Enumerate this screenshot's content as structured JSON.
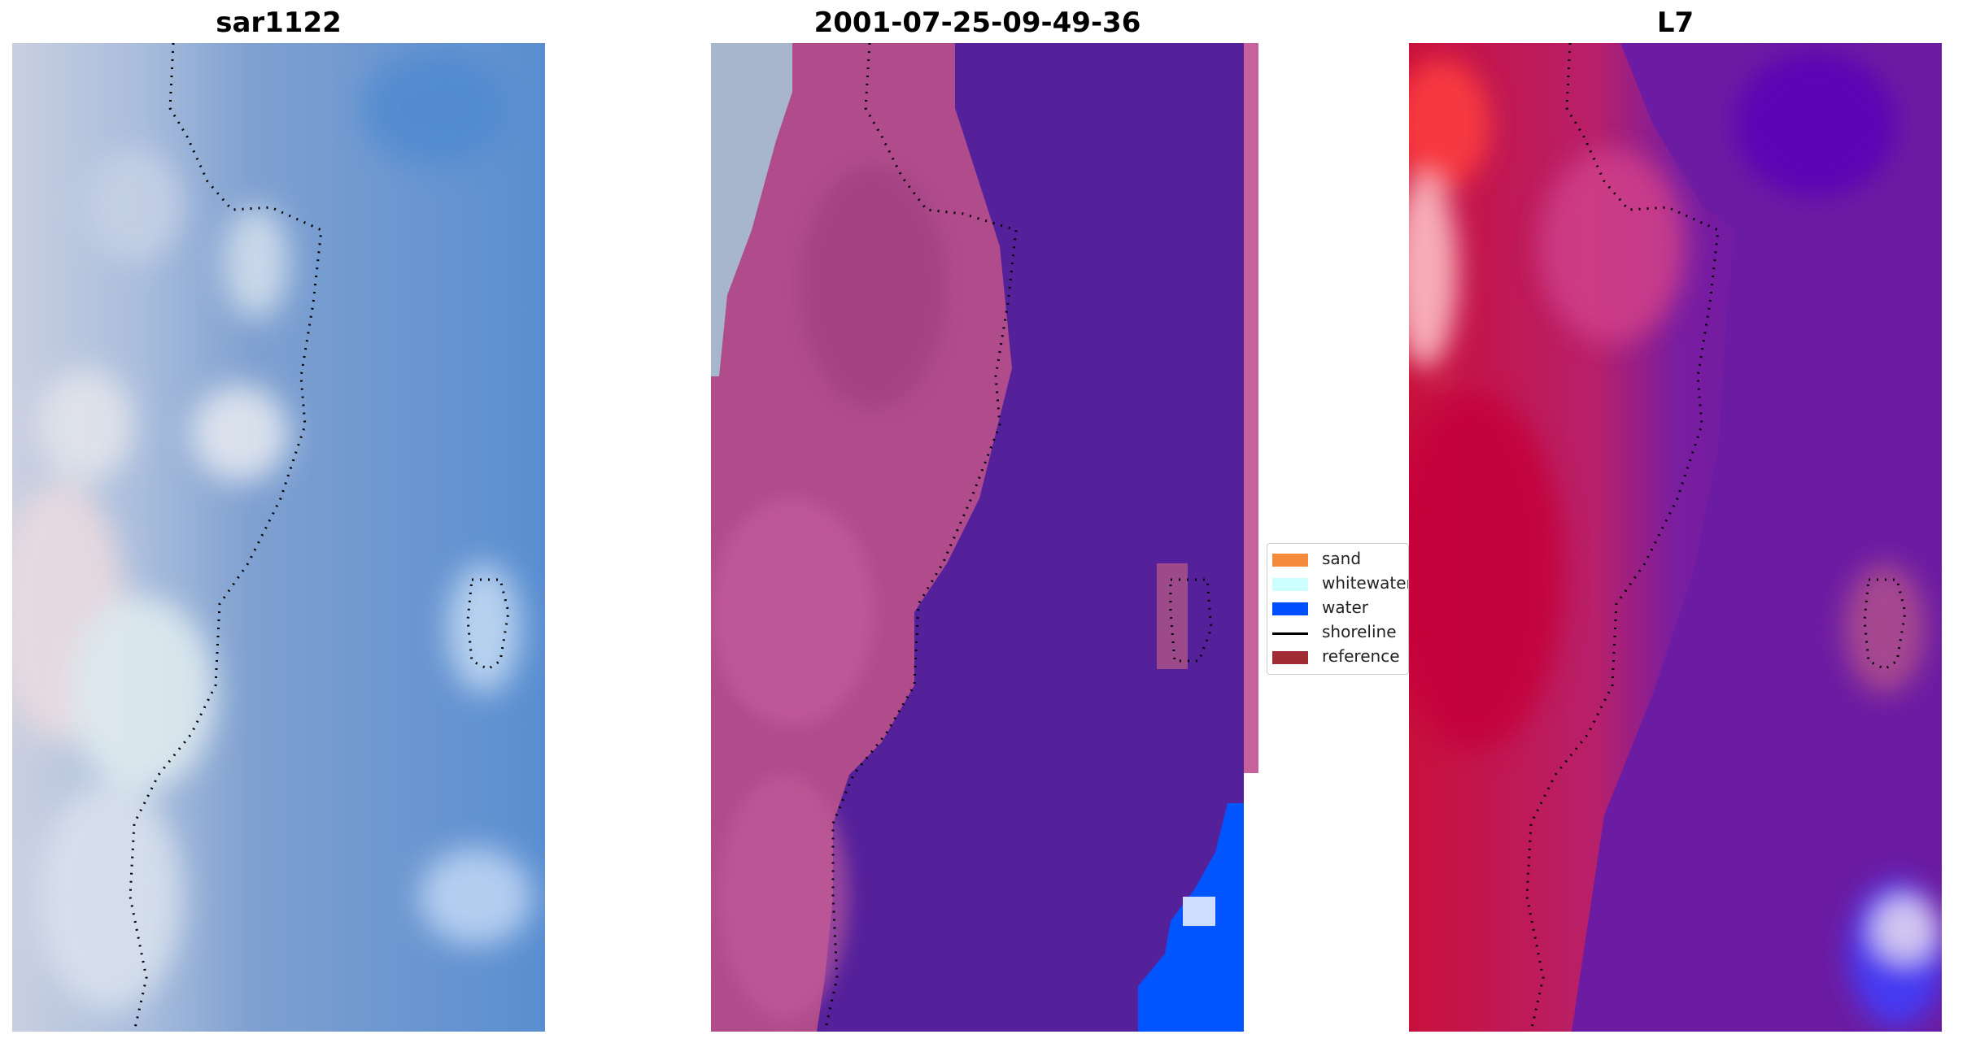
{
  "panels": [
    {
      "title": "sar1122"
    },
    {
      "title": "2001-07-25-09-49-36"
    },
    {
      "title": "L7"
    }
  ],
  "legend": {
    "items": [
      {
        "label": "sand",
        "color": "#f48a3b",
        "kind": "patch"
      },
      {
        "label": "whitewater",
        "color": "#ccffff",
        "kind": "patch"
      },
      {
        "label": "water",
        "color": "#0050ff",
        "kind": "patch"
      },
      {
        "label": "shoreline",
        "color": "#000000",
        "kind": "line"
      },
      {
        "label": "reference",
        "color": "#a02d33",
        "kind": "patch"
      }
    ]
  },
  "colors": {
    "sar_water": "#5b8fcc",
    "sar_land": "#c9d5e6",
    "class_land": "#b45090",
    "class_sea": "#55219b",
    "class_water": "#0055ff",
    "class_strip": "#c8609c",
    "l7_land": "#c8103c",
    "l7_sea": "#6a149e",
    "l7_nw": "#ff3a3a"
  }
}
